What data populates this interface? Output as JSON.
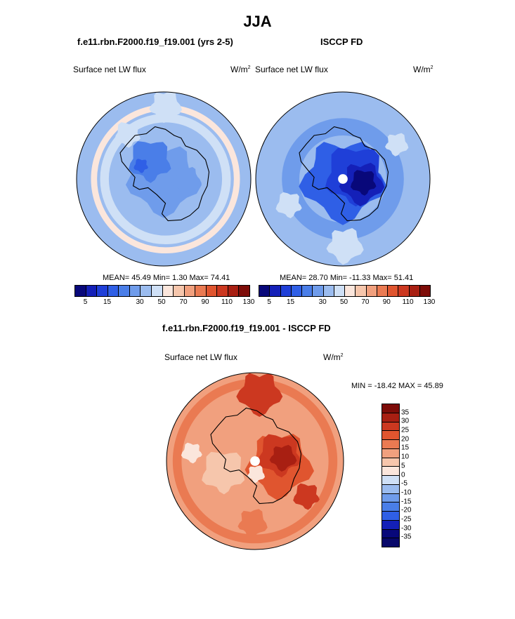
{
  "title": "JJA",
  "panels": {
    "left": {
      "header": "f.e11.rbn.F2000.f19_f19.001 (yrs 2-5)",
      "var_label": "Surface net LW flux",
      "unit": "W/m",
      "unit_sup": "2",
      "stats": "MEAN=  45.49  Min=   1.30  Max=  74.41"
    },
    "right": {
      "header": "ISCCP FD",
      "var_label": "Surface net LW flux",
      "unit": "W/m",
      "unit_sup": "2",
      "stats": "MEAN=  28.70  Min= -11.33  Max=  51.41"
    },
    "diff": {
      "header": "f.e11.rbn.F2000.f19_f19.001 - ISCCP FD",
      "var_label": "Surface net LW flux",
      "unit": "W/m",
      "unit_sup": "2",
      "stats": "MIN = -18.42 MAX =  45.89"
    }
  },
  "chart_data": [
    {
      "type": "heatmap",
      "projection": "south-polar-stereographic",
      "title": "f.e11.rbn.F2000.f19_f19.001 (yrs 2-5)",
      "variable": "Surface net LW flux",
      "units": "W/m2",
      "mean": 45.49,
      "min": 1.3,
      "max": 74.41,
      "colorbar": {
        "levels": [
          5,
          10,
          15,
          20,
          25,
          30,
          40,
          50,
          60,
          70,
          80,
          90,
          100,
          110,
          120,
          130
        ],
        "tick_labels": [
          "5",
          "15",
          "30",
          "50",
          "70",
          "90",
          "110",
          "130"
        ]
      }
    },
    {
      "type": "heatmap",
      "projection": "south-polar-stereographic",
      "title": "ISCCP FD",
      "variable": "Surface net LW flux",
      "units": "W/m2",
      "mean": 28.7,
      "min": -11.33,
      "max": 51.41,
      "colorbar": {
        "levels": [
          5,
          10,
          15,
          20,
          25,
          30,
          40,
          50,
          60,
          70,
          80,
          90,
          100,
          110,
          120,
          130
        ],
        "tick_labels": [
          "5",
          "15",
          "30",
          "50",
          "70",
          "90",
          "110",
          "130"
        ]
      }
    },
    {
      "type": "heatmap",
      "projection": "south-polar-stereographic",
      "title": "f.e11.rbn.F2000.f19_f19.001 - ISCCP FD",
      "variable": "Surface net LW flux",
      "units": "W/m2",
      "min": -18.42,
      "max": 45.89,
      "colorbar": {
        "levels": [
          35,
          30,
          25,
          20,
          15,
          10,
          5,
          0,
          -5,
          -10,
          -15,
          -20,
          -25,
          -30,
          -35
        ],
        "tick_labels": [
          "35",
          "30",
          "25",
          "20",
          "15",
          "10",
          "5",
          "0",
          "-5",
          "-10",
          "-15",
          "-20",
          "-25",
          "-30",
          "-35"
        ]
      }
    }
  ],
  "colors": {
    "seq": [
      "#08087a",
      "#1420b8",
      "#1f3fd8",
      "#2f5fe6",
      "#4a7ee8",
      "#6f9ceb",
      "#9bbcef",
      "#cfe0f6",
      "#fbe6dc",
      "#f6c6ac",
      "#f1a07e",
      "#ea7a52",
      "#e0552f",
      "#cc3820",
      "#a81f12",
      "#7d0c08"
    ],
    "div": [
      "#7d0c08",
      "#a81f12",
      "#cc3820",
      "#e0552f",
      "#ea7a52",
      "#f1a07e",
      "#f6c6ac",
      "#fbe6dc",
      "#cfe0f6",
      "#9bbcef",
      "#6f9ceb",
      "#4a7ee8",
      "#2f5fe6",
      "#1420b8",
      "#08087a"
    ]
  }
}
